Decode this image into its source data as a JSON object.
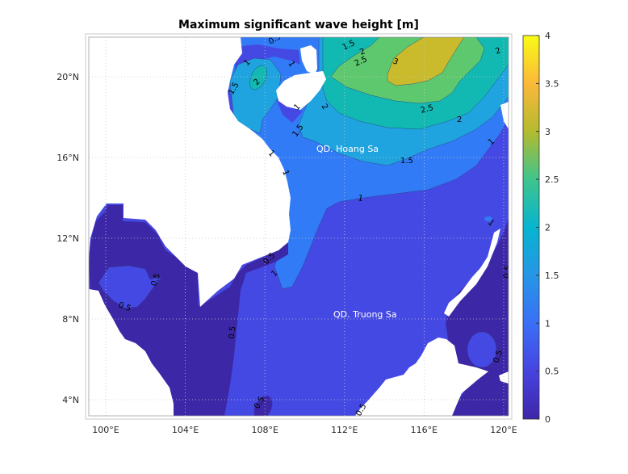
{
  "chart_data": {
    "type": "contour-map",
    "title": "Maximum significant wave height [m]",
    "x_ticks": [
      "100°E",
      "104°E",
      "108°E",
      "112°E",
      "116°E",
      "120°E"
    ],
    "y_ticks": [
      "4°N",
      "8°N",
      "12°N",
      "16°N",
      "20°N"
    ],
    "xlim": [
      99.2,
      120.3
    ],
    "ylim": [
      3.2,
      22.1
    ],
    "grid": true,
    "contour_levels": [
      0.5,
      1,
      1.5,
      2,
      2.5,
      3
    ],
    "contour_labels": [
      "0.5",
      "1",
      "1",
      "1.5",
      "2",
      "1.5",
      "2",
      "2.5",
      "3",
      "2",
      "2.5",
      "2",
      "1",
      "2",
      "1.5",
      "1.5",
      "1",
      "1",
      "1",
      "1",
      "0.5",
      "1",
      "0.5",
      "0.5",
      "0.5",
      "1",
      "0.5",
      "0.5",
      "0.5",
      "0.5"
    ],
    "place_labels": [
      "QD. Hoang Sa",
      "QD. Truong Sa"
    ],
    "colorbar": {
      "range": [
        0,
        4
      ],
      "ticks": [
        "0",
        "0.5",
        "1",
        "1.5",
        "2",
        "2.5",
        "3",
        "3.5",
        "4"
      ],
      "colormap": "parula",
      "placement": "right"
    },
    "colors": {
      "0-0.5": "#3c28a6",
      "0.5-1": "#4549e3",
      "1-1.5": "#327bf7",
      "1.5-2": "#1fa4df",
      "2-2.5": "#12b9b2",
      "2.5-3": "#5ec86f",
      "3-3.5": "#c9bb2b",
      "land": "#ffffff"
    }
  }
}
